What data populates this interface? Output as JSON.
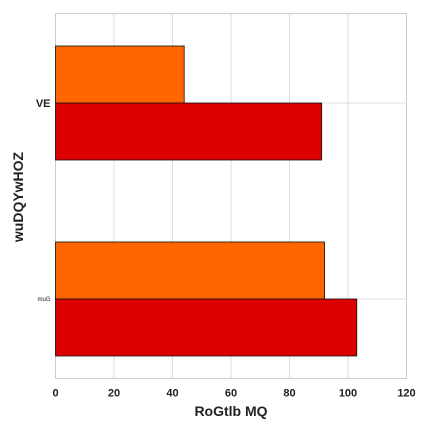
{
  "chart_data": {
    "type": "bar",
    "orientation": "horizontal",
    "title": "",
    "xlabel": "RoGtlb   MQ",
    "ylabel": "wuDQYwHOZ",
    "categories": [
      "VE",
      "muG"
    ],
    "series": [
      {
        "values": [
          44,
          92
        ],
        "color": "#ff6600"
      },
      {
        "values": [
          91,
          103
        ],
        "color": "#dd0000"
      }
    ],
    "xlim": [
      0,
      120
    ],
    "xticks": [
      "0",
      "20",
      "40",
      "60",
      "80",
      "100",
      "120"
    ],
    "grid": true
  }
}
